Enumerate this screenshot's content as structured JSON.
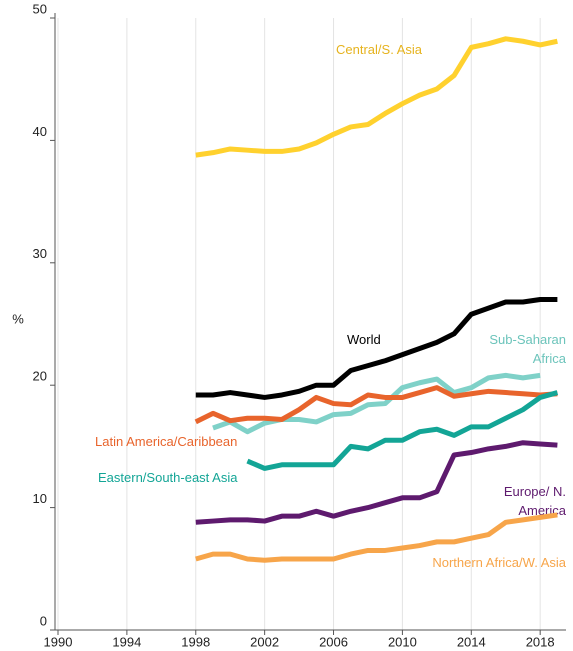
{
  "chart_data": {
    "type": "line",
    "y_label": "%",
    "x": [
      1998,
      1999,
      2000,
      2001,
      2002,
      2003,
      2004,
      2005,
      2006,
      2007,
      2008,
      2009,
      2010,
      2011,
      2012,
      2013,
      2014,
      2015,
      2016,
      2017,
      2018,
      2019
    ],
    "xlim": [
      1990,
      2019.5
    ],
    "xticks": [
      1990,
      1994,
      1998,
      2002,
      2006,
      2010,
      2014,
      2018
    ],
    "ylim": [
      0,
      50
    ],
    "yticks": [
      0,
      10,
      20,
      30,
      40,
      50
    ],
    "grid": true,
    "series": [
      {
        "name": "Central/S. Asia",
        "color": "#ffd12e",
        "values": [
          38.8,
          39.0,
          39.3,
          39.2,
          39.1,
          39.1,
          39.3,
          39.8,
          40.5,
          41.1,
          41.3,
          42.2,
          43.0,
          43.7,
          44.2,
          45.3,
          47.6,
          47.9,
          48.3,
          48.1,
          47.8,
          48.1
        ]
      },
      {
        "name": "World",
        "color": "#000000",
        "values": [
          19.2,
          19.2,
          19.4,
          19.2,
          19.0,
          19.2,
          19.5,
          20.0,
          20.0,
          21.2,
          21.6,
          22.0,
          22.5,
          23.0,
          23.5,
          24.2,
          25.8,
          26.3,
          26.8,
          26.8,
          27.0,
          27.0
        ]
      },
      {
        "name": "Sub-Saharan Africa",
        "color": "#7fd1c8",
        "values": [
          null,
          16.5,
          17.0,
          16.2,
          16.9,
          17.2,
          17.2,
          17.0,
          17.6,
          17.7,
          18.4,
          18.5,
          19.8,
          20.2,
          20.5,
          19.4,
          19.8,
          20.6,
          20.8,
          20.6,
          20.8,
          null
        ]
      },
      {
        "name": "Latin America/Caribbean",
        "color": "#e8642c",
        "values": [
          17.0,
          17.7,
          17.1,
          17.3,
          17.3,
          17.2,
          18.0,
          19.0,
          18.5,
          18.4,
          19.2,
          19.0,
          19.0,
          19.4,
          19.8,
          19.1,
          19.3,
          19.5,
          19.4,
          19.3,
          19.2,
          19.3
        ]
      },
      {
        "name": "Eastern/South-east Asia",
        "color": "#13a596",
        "values": [
          null,
          null,
          null,
          13.8,
          13.2,
          13.5,
          13.5,
          13.5,
          13.5,
          15.0,
          14.8,
          15.5,
          15.5,
          16.2,
          16.4,
          15.9,
          16.6,
          16.6,
          17.3,
          18.0,
          19.0,
          19.4
        ]
      },
      {
        "name": "Europe/ N. America",
        "color": "#5e1a6e",
        "values": [
          8.8,
          8.9,
          9.0,
          9.0,
          8.9,
          9.3,
          9.3,
          9.7,
          9.3,
          9.7,
          10.0,
          10.4,
          10.8,
          10.8,
          11.3,
          14.3,
          14.5,
          14.8,
          15.0,
          15.3,
          15.2,
          15.1
        ]
      },
      {
        "name": "Northern Africa/W. Asia",
        "color": "#f7a54a",
        "values": [
          5.8,
          6.2,
          6.2,
          5.8,
          5.7,
          5.8,
          5.8,
          5.8,
          5.8,
          6.2,
          6.5,
          6.5,
          6.7,
          6.9,
          7.2,
          7.2,
          7.5,
          7.8,
          8.8,
          9.0,
          9.2,
          9.4
        ]
      }
    ]
  }
}
